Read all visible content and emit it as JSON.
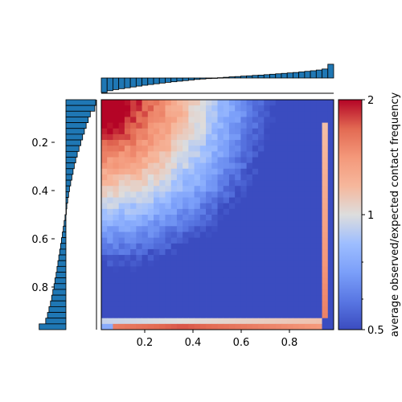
{
  "chart_data": {
    "type": "heatmap",
    "title": "",
    "x_ticks": [
      "0.2",
      "0.4",
      "0.6",
      "0.8"
    ],
    "x_tick_values": [
      0.2,
      0.4,
      0.6,
      0.8
    ],
    "y_ticks": [
      "0.2",
      "0.4",
      "0.6",
      "0.8"
    ],
    "y_tick_values": [
      0.2,
      0.4,
      0.6,
      0.8
    ],
    "xlim": [
      0.02,
      0.98
    ],
    "ylim": [
      0.02,
      0.98
    ],
    "colorbar": {
      "label": "average observed/expected contact frequency",
      "ticks": [
        "0.5",
        "1",
        "2"
      ],
      "tick_values": [
        0.5,
        1,
        2
      ],
      "scale": "log2",
      "range": [
        0.5,
        2
      ],
      "colormap": "coolwarm"
    },
    "grid_cells": 40,
    "top_histogram_values": [
      -1.0,
      -0.88,
      -0.8,
      -0.74,
      -0.68,
      -0.62,
      -0.56,
      -0.5,
      -0.45,
      -0.4,
      -0.35,
      -0.3,
      -0.26,
      -0.22,
      -0.18,
      -0.14,
      -0.1,
      -0.07,
      -0.04,
      -0.01,
      0.02,
      0.05,
      0.08,
      0.1,
      0.13,
      0.15,
      0.18,
      0.2,
      0.23,
      0.26,
      0.29,
      0.32,
      0.35,
      0.38,
      0.42,
      0.46,
      0.5,
      0.55,
      0.62,
      0.95
    ],
    "left_histogram_values": [
      1.0,
      0.97,
      0.82,
      0.75,
      0.68,
      0.62,
      0.56,
      0.5,
      0.44,
      0.38,
      0.33,
      0.28,
      0.24,
      0.2,
      0.16,
      0.12,
      0.09,
      0.06,
      0.03,
      0.0,
      -0.03,
      -0.06,
      -0.09,
      -0.12,
      -0.15,
      -0.18,
      -0.21,
      -0.24,
      -0.27,
      -0.3,
      -0.33,
      -0.37,
      -0.4,
      -0.44,
      -0.48,
      -0.52,
      -0.57,
      -0.62,
      -0.68,
      -0.9
    ],
    "colors": {
      "bar_fill": "#1f77b4",
      "bar_edge": "#000000",
      "cmap_low": "#3b4cc0",
      "cmap_mid": "#dddddd",
      "cmap_high": "#b40426"
    }
  }
}
